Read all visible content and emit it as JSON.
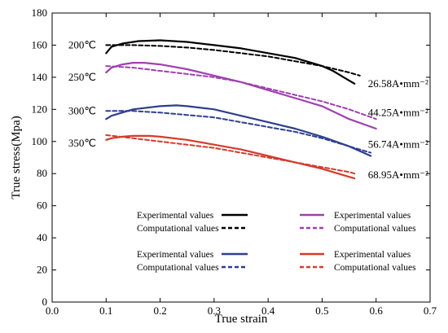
{
  "chart_data": {
    "type": "line",
    "xlabel": "True strain",
    "ylabel": "True stress(Mpa)",
    "xlim": [
      0.0,
      0.7
    ],
    "ylim": [
      0,
      180
    ],
    "xticks": [
      "0.0",
      "0.1",
      "0.2",
      "0.3",
      "0.4",
      "0.5",
      "0.6",
      "0.7"
    ],
    "yticks": [
      "0",
      "20",
      "40",
      "60",
      "80",
      "100",
      "120",
      "140",
      "160",
      "180"
    ],
    "grid": false,
    "annotations": {
      "temperatures": [
        {
          "label": "200℃",
          "x": 0.03,
          "y": 160
        },
        {
          "label": "250℃",
          "x": 0.03,
          "y": 140
        },
        {
          "label": "300℃",
          "x": 0.03,
          "y": 119
        },
        {
          "label": "350℃",
          "x": 0.03,
          "y": 99
        }
      ],
      "current_densities": [
        {
          "label": "26.58A•mm⁻²",
          "x": 0.585,
          "y": 136
        },
        {
          "label": "44.25A•mm⁻²",
          "x": 0.585,
          "y": 118
        },
        {
          "label": "56.74A•mm⁻²",
          "x": 0.585,
          "y": 98
        },
        {
          "label": "68.95A•mm⁻²",
          "x": 0.585,
          "y": 79
        }
      ]
    },
    "legend": {
      "placement": "bottom-center",
      "groups": [
        {
          "color": "#000000",
          "experimental_label": "Experimental values",
          "computational_label": "Computational values"
        },
        {
          "color": "#a040b0",
          "experimental_label": "Experimental values",
          "computational_label": "Computational values"
        },
        {
          "color": "#2e3f8f",
          "experimental_label": "Experimental values",
          "computational_label": "Computational values"
        },
        {
          "color": "#d63a2e",
          "experimental_label": "Experimental values",
          "computational_label": "Computational values"
        }
      ]
    },
    "series": [
      {
        "color": "#000000",
        "style": "solid",
        "x": [
          0.1,
          0.11,
          0.13,
          0.16,
          0.2,
          0.25,
          0.3,
          0.35,
          0.4,
          0.45,
          0.48,
          0.5,
          0.52,
          0.54,
          0.56
        ],
        "y": [
          155,
          159,
          161,
          162.5,
          163,
          162,
          160,
          158,
          155,
          152,
          149,
          147,
          144,
          140,
          136
        ]
      },
      {
        "color": "#000000",
        "style": "dashed",
        "x": [
          0.1,
          0.15,
          0.2,
          0.25,
          0.3,
          0.35,
          0.4,
          0.45,
          0.5,
          0.55,
          0.57
        ],
        "y": [
          160,
          160,
          159.5,
          158.5,
          157,
          155,
          153,
          150,
          147,
          143,
          141
        ]
      },
      {
        "color": "#a040b0",
        "style": "solid",
        "x": [
          0.1,
          0.11,
          0.13,
          0.15,
          0.17,
          0.2,
          0.25,
          0.3,
          0.35,
          0.4,
          0.45,
          0.5,
          0.55,
          0.6
        ],
        "y": [
          143,
          146,
          148,
          149,
          149,
          148,
          145,
          141,
          137,
          132,
          127,
          122,
          114,
          108
        ]
      },
      {
        "color": "#a040b0",
        "style": "dashed",
        "x": [
          0.1,
          0.15,
          0.2,
          0.25,
          0.3,
          0.35,
          0.4,
          0.45,
          0.5,
          0.55,
          0.6
        ],
        "y": [
          147,
          146,
          144,
          142,
          140,
          137,
          133,
          129,
          125,
          120,
          114
        ]
      },
      {
        "color": "#2e3f8f",
        "style": "solid",
        "x": [
          0.1,
          0.11,
          0.15,
          0.2,
          0.23,
          0.25,
          0.3,
          0.35,
          0.4,
          0.45,
          0.5,
          0.55,
          0.59
        ],
        "y": [
          114,
          116,
          120,
          122,
          122.5,
          122,
          120,
          116,
          112,
          108,
          103,
          97,
          91
        ]
      },
      {
        "color": "#2e3f8f",
        "style": "dashed",
        "x": [
          0.1,
          0.15,
          0.2,
          0.25,
          0.3,
          0.35,
          0.4,
          0.45,
          0.5,
          0.55,
          0.59
        ],
        "y": [
          119,
          119,
          118,
          116.5,
          115,
          112,
          109,
          106,
          102,
          97,
          93
        ]
      },
      {
        "color": "#d63a2e",
        "style": "solid",
        "x": [
          0.1,
          0.11,
          0.13,
          0.15,
          0.18,
          0.2,
          0.25,
          0.3,
          0.35,
          0.4,
          0.45,
          0.5,
          0.55,
          0.56
        ],
        "y": [
          101,
          102,
          103,
          103.5,
          103.5,
          103,
          101,
          98,
          95,
          91,
          87,
          83,
          78,
          77
        ]
      },
      {
        "color": "#d63a2e",
        "style": "dashed",
        "x": [
          0.1,
          0.15,
          0.2,
          0.25,
          0.3,
          0.35,
          0.4,
          0.45,
          0.5,
          0.55,
          0.56
        ],
        "y": [
          104,
          102,
          100,
          98,
          96,
          93,
          90,
          87,
          84,
          81,
          80
        ]
      }
    ]
  }
}
